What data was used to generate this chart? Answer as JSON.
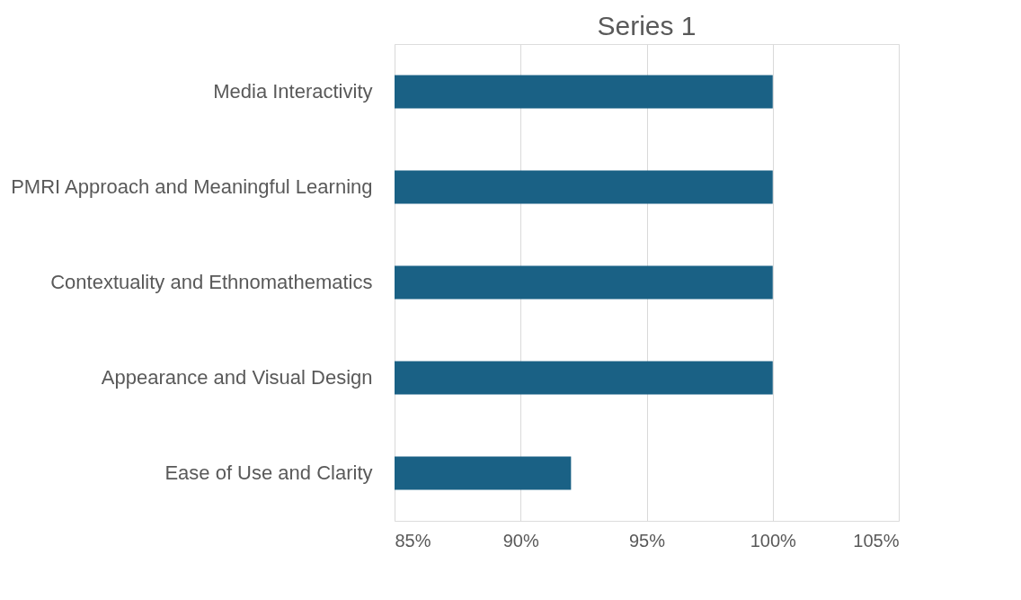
{
  "chart_data": {
    "type": "bar",
    "orientation": "horizontal",
    "title": "Series 1",
    "categories": [
      "Media Interactivity",
      "PMRI Approach and Meaningful Learning",
      "Contextuality and Ethnomathematics",
      "Appearance and Visual Design",
      "Ease of Use and Clarity"
    ],
    "values": [
      100,
      100,
      100,
      100,
      92
    ],
    "color": "#1a6185",
    "xlim": [
      85,
      105
    ],
    "xticks": [
      {
        "value": 85,
        "label": "85%"
      },
      {
        "value": 90,
        "label": "90%"
      },
      {
        "value": 95,
        "label": "95%"
      },
      {
        "value": 100,
        "label": "100%"
      },
      {
        "value": 105,
        "label": "105%"
      }
    ],
    "grid": "x"
  }
}
